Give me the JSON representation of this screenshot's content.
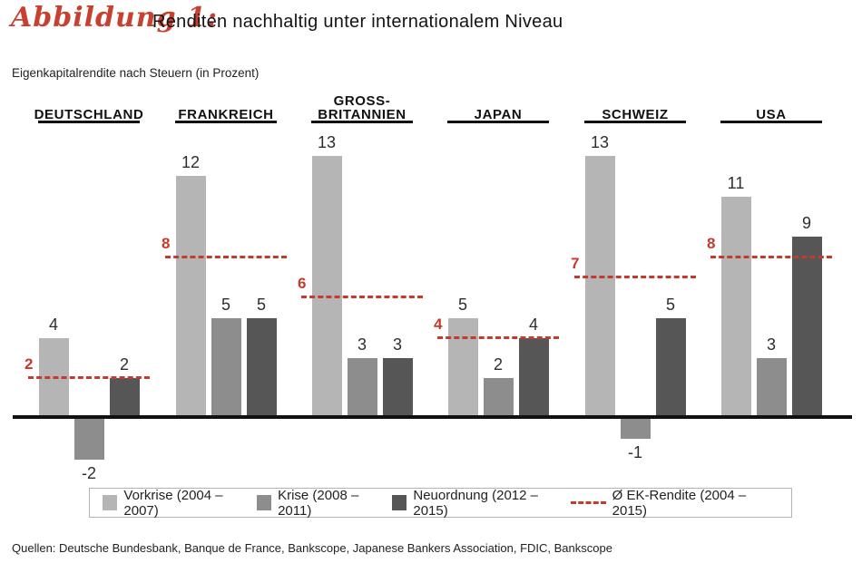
{
  "figure": {
    "label": "Abbildung 1:",
    "title": "Renditen nachhaltig unter internationalem Niveau",
    "subtitle": "Eigenkapitalrendite nach Steuern (in Prozent)",
    "sources": "Quellen: Deutsche Bundesbank, Banque de France, Bankscope, Japanese Bankers Association, FDIC, Bankscope"
  },
  "colors": {
    "vorkrise": "#b5b5b5",
    "krise": "#8d8d8d",
    "neuordnung": "#565656",
    "accent_red": "#c43b2d",
    "axis": "#111111"
  },
  "chart_data": {
    "type": "bar",
    "title": "Renditen nachhaltig unter internationalem Niveau",
    "ylabel": "Eigenkapitalrendite nach Steuern (in Prozent)",
    "categories": [
      "DEUTSCHLAND",
      "FRANKREICH",
      "GROSS-\nBRITANNIEN",
      "JAPAN",
      "SCHWEIZ",
      "USA"
    ],
    "series": [
      {
        "name": "Vorkrise (2004 – 2007)",
        "values": [
          4,
          12,
          13,
          5,
          13,
          11
        ]
      },
      {
        "name": "Krise (2008 – 2011)",
        "values": [
          -2,
          5,
          3,
          2,
          -1,
          3
        ]
      },
      {
        "name": "Neuordnung (2012 – 2015)",
        "values": [
          2,
          5,
          3,
          4,
          5,
          9
        ]
      }
    ],
    "average_line": {
      "name": "Ø EK-Rendite (2004 – 2015)",
      "values": [
        2,
        8,
        6,
        4,
        7,
        8
      ]
    },
    "ylim": [
      -2.5,
      13.5
    ],
    "grid": false,
    "legend_position": "bottom"
  },
  "legend": {
    "items": [
      {
        "label": "Vorkrise (2004 – 2007)",
        "swatch": "vorkrise"
      },
      {
        "label": "Krise (2008 – 2011)",
        "swatch": "krise"
      },
      {
        "label": "Neuordnung (2012 – 2015)",
        "swatch": "neuordnung"
      },
      {
        "label": "Ø EK-Rendite (2004 – 2015)",
        "swatch": "dashed-red"
      }
    ]
  }
}
